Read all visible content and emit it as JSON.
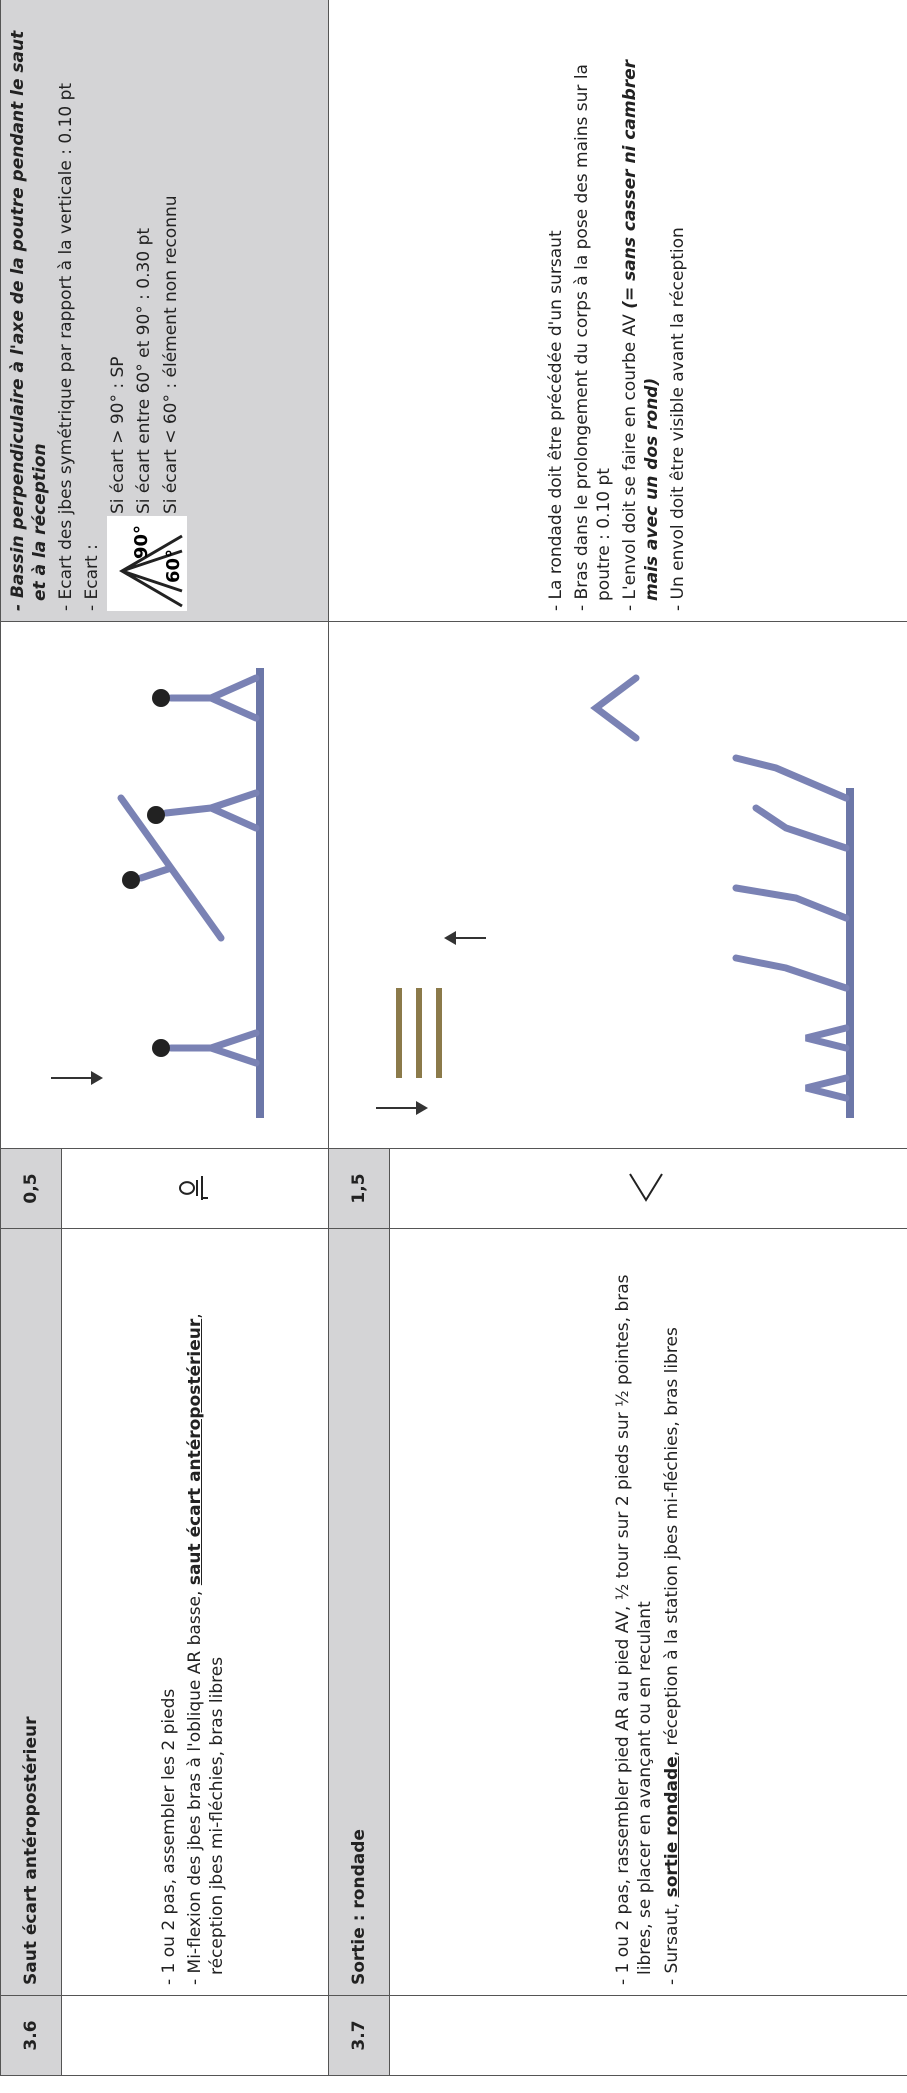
{
  "items": [
    {
      "number": "3.6",
      "title": "Saut écart antéropostérieur",
      "value": "0,5",
      "description": [
        [
          "- 1 ou 2 pas, assembler les 2 pieds"
        ],
        [
          "- Mi-flexion des jbes bras à l'oblique AR basse, ",
          "saut écart antéropostérieur",
          ", réception jbes mi-fléchies, bras libres"
        ]
      ],
      "criteria": [
        "- Bassin perpendiculaire à l'axe de la poutre pendant le saut et à la réception",
        "- Ecart des jbes symétrique par rapport à la verticale : 0.10 pt",
        "- Ecart :"
      ],
      "angles": [
        "90°",
        "60°"
      ],
      "angle_rules": [
        "Si écart > 90° : SP",
        "Si écart entre 60° et 90° : 0.30 pt",
        "Si écart < 60° : élément non reconnu"
      ]
    },
    {
      "number": "3.7",
      "title": "Sortie : rondade",
      "value": "1,5",
      "description": [
        [
          "- 1 ou 2 pas, rassembler pied AR au pied AV, ½ tour sur 2 pieds sur ½ pointes, bras libres, se placer en avançant ou en reculant"
        ],
        [
          "- Sursaut, ",
          "sortie rondade",
          ", réception à la station jbes mi-fléchies, bras libres"
        ]
      ],
      "criteria": [
        [
          "- La rondade doit être précédée d'un sursaut"
        ],
        [
          "- Bras dans le prolongement du corps à la pose des mains sur la poutre : 0.10 pt"
        ],
        [
          "- L'envol doit se faire en courbe AV ",
          "(= sans casser ni cambrer mais avec un dos rond)"
        ],
        [
          "- Un envol doit être visible avant la réception"
        ]
      ]
    }
  ]
}
